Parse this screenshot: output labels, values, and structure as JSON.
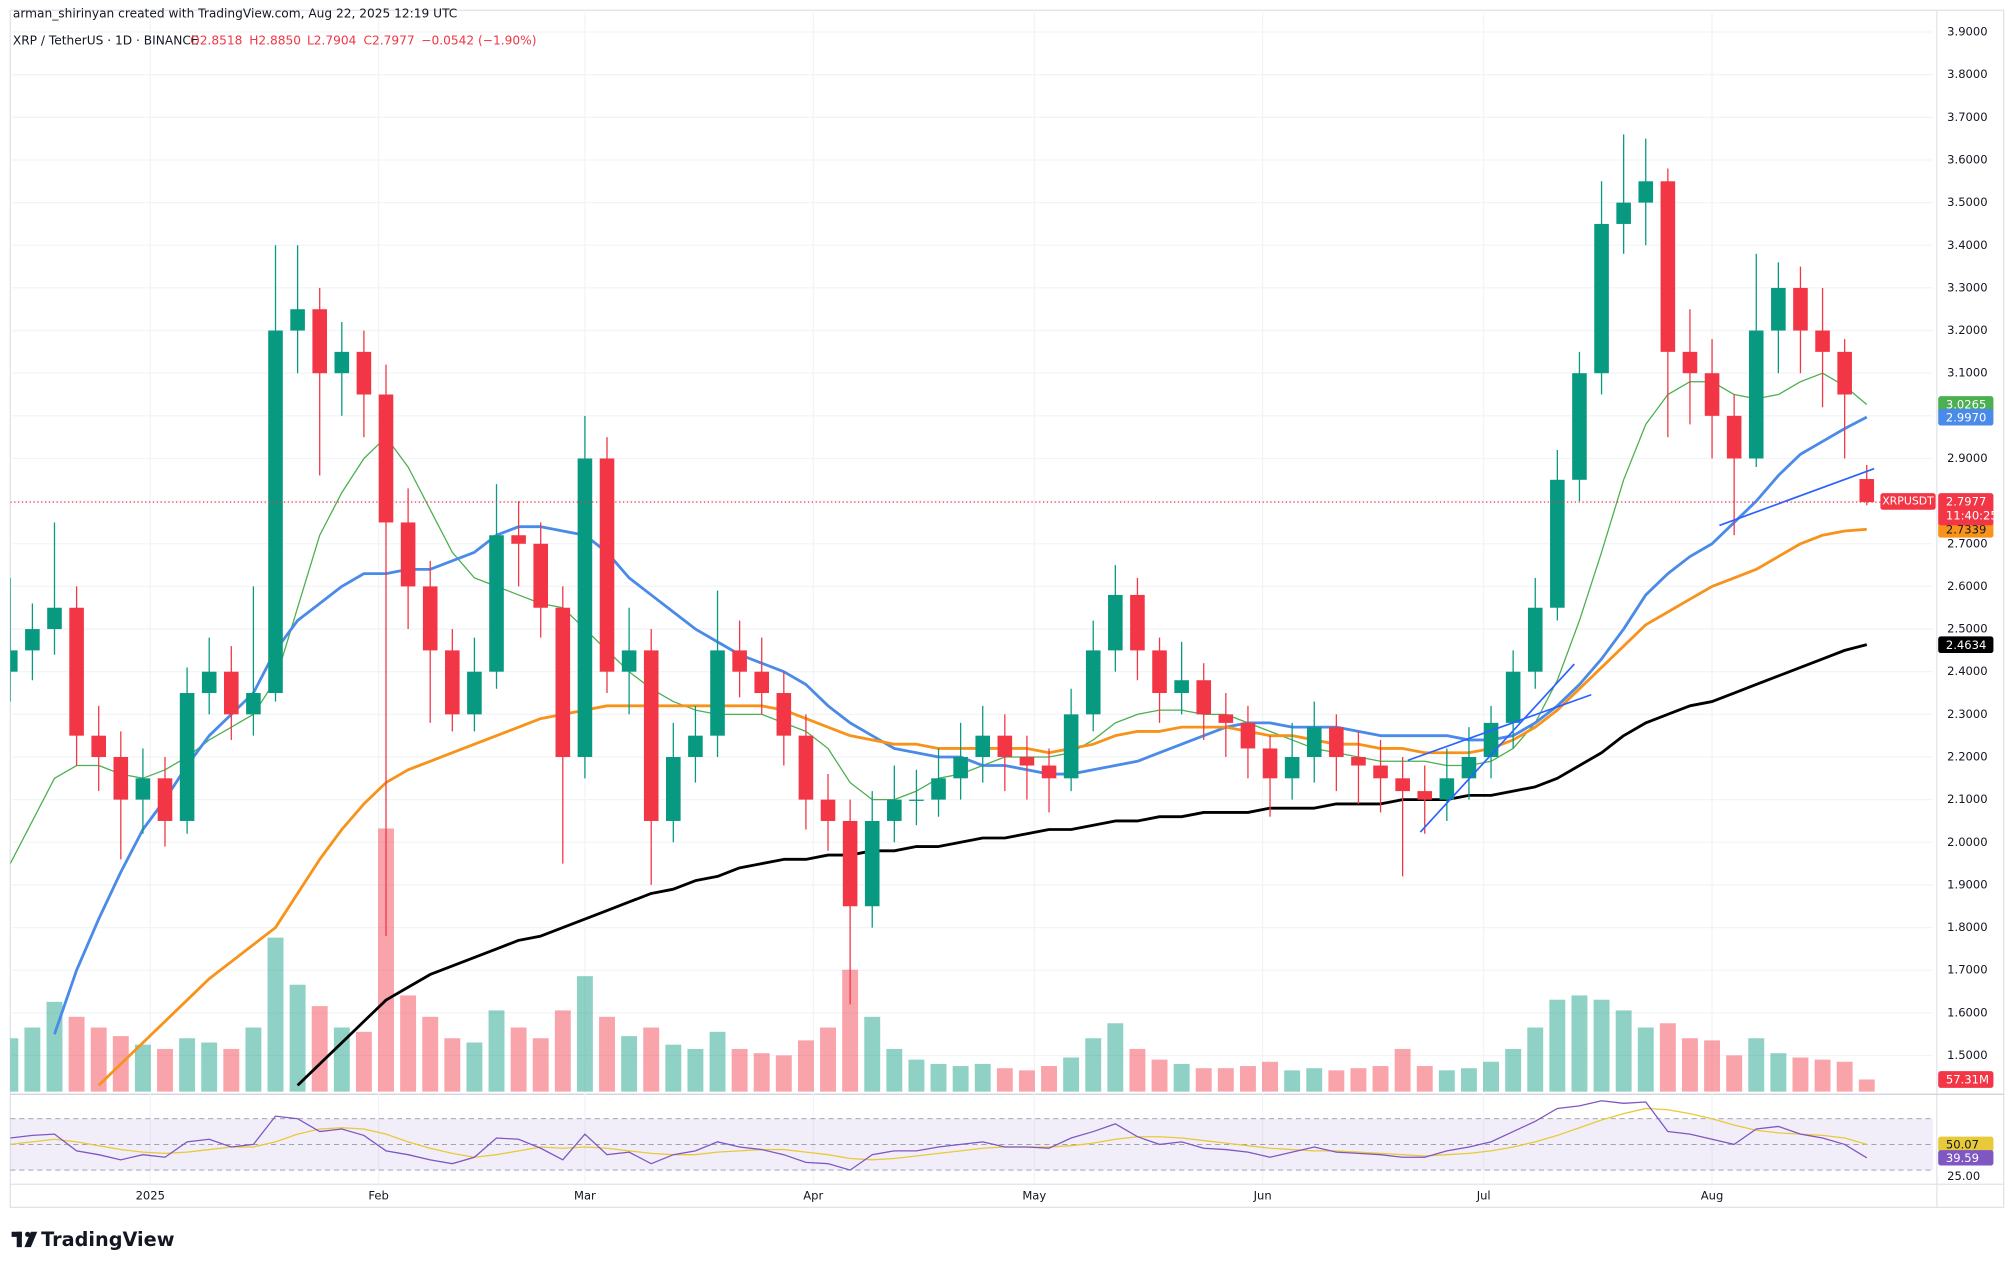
{
  "header": {
    "credit": "arman_shirinyan created with TradingView.com, Aug 22, 2025 12:19 UTC",
    "symbol": "XRP / TetherUS · 1D · BINANCE",
    "ohlc": [
      "O2.8518",
      "H2.8850",
      "L2.7904",
      "C2.7977"
    ],
    "change": "−0.0542 (−1.90%)"
  },
  "footer": {
    "logo": "TradingView"
  },
  "chart_data": {
    "type": "candlestick",
    "x": [
      0,
      3,
      6,
      9,
      12,
      15,
      18,
      21,
      24,
      27,
      30,
      33,
      36,
      39,
      42,
      45,
      48,
      51,
      54,
      57,
      60,
      63,
      66,
      69,
      72,
      75,
      78,
      81,
      84,
      87,
      90,
      93,
      96,
      99,
      102,
      105,
      108,
      111,
      114,
      117,
      120,
      123,
      126,
      129,
      132,
      135,
      138,
      141,
      144,
      147,
      150,
      153,
      156,
      159,
      162,
      165,
      168,
      171,
      174,
      177,
      180,
      183,
      186,
      189,
      192,
      195,
      198,
      201,
      204,
      207,
      210,
      213,
      216,
      219,
      222,
      225,
      228,
      231,
      234,
      237,
      240,
      243,
      246,
      249,
      252
    ],
    "xlim": [
      0,
      261
    ],
    "xticks": [
      {
        "value": 19,
        "label": "2025"
      },
      {
        "value": 50,
        "label": "Feb"
      },
      {
        "value": 78,
        "label": "Mar"
      },
      {
        "value": 109,
        "label": "Apr"
      },
      {
        "value": 139,
        "label": "May"
      },
      {
        "value": 170,
        "label": "Jun"
      },
      {
        "value": 200,
        "label": "Jul"
      },
      {
        "value": 231,
        "label": "Aug"
      }
    ],
    "open": [
      2.4,
      2.45,
      2.5,
      2.55,
      2.25,
      2.2,
      2.1,
      2.15,
      2.05,
      2.35,
      2.4,
      2.3,
      2.35,
      3.2,
      3.25,
      3.1,
      3.15,
      3.05,
      2.75,
      2.6,
      2.45,
      2.3,
      2.4,
      2.72,
      2.7,
      2.55,
      2.2,
      2.9,
      2.4,
      2.45,
      2.05,
      2.2,
      2.25,
      2.45,
      2.4,
      2.35,
      2.25,
      2.1,
      2.05,
      1.85,
      2.05,
      2.1,
      2.1,
      2.15,
      2.2,
      2.25,
      2.2,
      2.18,
      2.15,
      2.3,
      2.45,
      2.58,
      2.45,
      2.35,
      2.38,
      2.3,
      2.28,
      2.22,
      2.15,
      2.2,
      2.27,
      2.2,
      2.18,
      2.15,
      2.12,
      2.1,
      2.15,
      2.2,
      2.28,
      2.4,
      2.55,
      2.85,
      3.1,
      3.45,
      3.5,
      3.55,
      3.15,
      3.1,
      3.0,
      2.9,
      3.2,
      3.3,
      3.2,
      3.15,
      2.8518
    ],
    "high": [
      2.62,
      2.56,
      2.75,
      2.6,
      2.32,
      2.26,
      2.22,
      2.2,
      2.41,
      2.48,
      2.46,
      2.6,
      3.4,
      3.4,
      3.3,
      3.22,
      3.2,
      3.12,
      2.83,
      2.66,
      2.5,
      2.48,
      2.84,
      2.8,
      2.75,
      2.6,
      3.0,
      2.95,
      2.55,
      2.5,
      2.28,
      2.32,
      2.59,
      2.52,
      2.48,
      2.4,
      2.3,
      2.16,
      2.1,
      2.12,
      2.18,
      2.17,
      2.22,
      2.28,
      2.32,
      2.3,
      2.25,
      2.22,
      2.36,
      2.52,
      2.65,
      2.62,
      2.48,
      2.47,
      2.42,
      2.35,
      2.32,
      2.25,
      2.28,
      2.33,
      2.3,
      2.26,
      2.24,
      2.2,
      2.18,
      2.22,
      2.27,
      2.32,
      2.45,
      2.62,
      2.92,
      3.15,
      3.55,
      3.66,
      3.65,
      3.58,
      3.25,
      3.18,
      3.05,
      3.38,
      3.36,
      3.35,
      3.3,
      3.18,
      2.885
    ],
    "low": [
      2.33,
      2.38,
      2.44,
      2.18,
      2.12,
      1.96,
      2.02,
      1.99,
      2.02,
      2.3,
      2.24,
      2.25,
      2.33,
      3.1,
      2.86,
      3.0,
      2.95,
      1.78,
      2.5,
      2.28,
      2.26,
      2.26,
      2.36,
      2.6,
      2.48,
      1.95,
      2.15,
      2.35,
      2.3,
      1.9,
      2.0,
      2.14,
      2.2,
      2.34,
      2.3,
      2.18,
      2.03,
      1.98,
      1.62,
      1.8,
      2.0,
      2.04,
      2.06,
      2.1,
      2.14,
      2.12,
      2.1,
      2.07,
      2.12,
      2.26,
      2.4,
      2.38,
      2.28,
      2.3,
      2.24,
      2.2,
      2.15,
      2.06,
      2.1,
      2.14,
      2.12,
      2.09,
      2.07,
      1.92,
      2.02,
      2.05,
      2.1,
      2.15,
      2.22,
      2.36,
      2.52,
      2.8,
      3.05,
      3.38,
      3.4,
      2.95,
      2.98,
      2.9,
      2.72,
      2.88,
      3.1,
      3.1,
      3.02,
      2.9,
      2.7904
    ],
    "close": [
      2.45,
      2.5,
      2.55,
      2.25,
      2.2,
      2.1,
      2.15,
      2.05,
      2.35,
      2.4,
      2.3,
      2.35,
      3.2,
      3.25,
      3.1,
      3.15,
      3.05,
      2.75,
      2.6,
      2.45,
      2.3,
      2.4,
      2.72,
      2.7,
      2.55,
      2.2,
      2.9,
      2.4,
      2.45,
      2.05,
      2.2,
      2.25,
      2.45,
      2.4,
      2.35,
      2.25,
      2.1,
      2.05,
      1.85,
      2.05,
      2.1,
      2.1,
      2.15,
      2.2,
      2.25,
      2.2,
      2.18,
      2.15,
      2.3,
      2.45,
      2.58,
      2.45,
      2.35,
      2.38,
      2.3,
      2.28,
      2.22,
      2.15,
      2.2,
      2.27,
      2.2,
      2.18,
      2.15,
      2.12,
      2.1,
      2.15,
      2.2,
      2.28,
      2.4,
      2.55,
      2.85,
      3.1,
      3.45,
      3.5,
      3.55,
      3.15,
      3.1,
      3.0,
      2.9,
      3.2,
      3.3,
      3.2,
      3.15,
      3.05,
      2.7977
    ],
    "up_color": "#089981",
    "down_color": "#f23645",
    "ylim": [
      1.415,
      3.945
    ],
    "yticks": [
      {
        "value": 1.5,
        "label": "1.5000"
      },
      {
        "value": 1.6,
        "label": "1.6000"
      },
      {
        "value": 1.7,
        "label": "1.7000"
      },
      {
        "value": 1.8,
        "label": "1.8000"
      },
      {
        "value": 1.9,
        "label": "1.9000"
      },
      {
        "value": 2.0,
        "label": "2.0000"
      },
      {
        "value": 2.1,
        "label": "2.1000"
      },
      {
        "value": 2.2,
        "label": "2.2000"
      },
      {
        "value": 2.3,
        "label": "2.3000"
      },
      {
        "value": 2.4,
        "label": "2.4000"
      },
      {
        "value": 2.5,
        "label": "2.5000"
      },
      {
        "value": 2.6,
        "label": "2.6000"
      },
      {
        "value": 2.7,
        "label": "2.7000"
      },
      {
        "value": 2.8,
        "label": "2.8000"
      },
      {
        "value": 2.9,
        "label": "2.9000"
      },
      {
        "value": 3.0,
        "label": "3.0000"
      },
      {
        "value": 3.1,
        "label": "3.1000"
      },
      {
        "value": 3.2,
        "label": "3.2000"
      },
      {
        "value": 3.3,
        "label": "3.3000"
      },
      {
        "value": 3.4,
        "label": "3.4000"
      },
      {
        "value": 3.5,
        "label": "3.5000"
      },
      {
        "value": 3.6,
        "label": "3.6000"
      },
      {
        "value": 3.7,
        "label": "3.7000"
      },
      {
        "value": 3.8,
        "label": "3.8000"
      },
      {
        "value": 3.9,
        "label": "3.9000"
      }
    ],
    "price_tag": {
      "symbol": "XRPUSDT",
      "price": "2.7977",
      "countdown": "11:40:25"
    },
    "moving_averages": [
      {
        "color": "#4caf50",
        "values": [
          1.95,
          2.05,
          2.15,
          2.18,
          2.18,
          2.16,
          2.15,
          2.17,
          2.2,
          2.24,
          2.27,
          2.3,
          2.38,
          2.55,
          2.72,
          2.82,
          2.9,
          2.95,
          2.88,
          2.78,
          2.68,
          2.62,
          2.6,
          2.58,
          2.56,
          2.55,
          2.5,
          2.45,
          2.4,
          2.36,
          2.33,
          2.31,
          2.3,
          2.3,
          2.3,
          2.28,
          2.26,
          2.22,
          2.14,
          2.1,
          2.1,
          2.12,
          2.15,
          2.16,
          2.18,
          2.2,
          2.2,
          2.2,
          2.21,
          2.24,
          2.28,
          2.3,
          2.31,
          2.31,
          2.3,
          2.3,
          2.28,
          2.26,
          2.24,
          2.22,
          2.21,
          2.2,
          2.19,
          2.19,
          2.19,
          2.18,
          2.18,
          2.19,
          2.22,
          2.28,
          2.38,
          2.52,
          2.68,
          2.85,
          2.98,
          3.05,
          3.08,
          3.08,
          3.05,
          3.04,
          3.05,
          3.08,
          3.1,
          3.07,
          3.0265
        ],
        "last_label": "3.0265"
      },
      {
        "color": "#4a8ae8",
        "values": [
          null,
          null,
          1.55,
          1.7,
          1.82,
          1.93,
          2.03,
          2.1,
          2.18,
          2.25,
          2.3,
          2.35,
          2.45,
          2.52,
          2.56,
          2.6,
          2.63,
          2.63,
          2.64,
          2.64,
          2.66,
          2.68,
          2.72,
          2.74,
          2.74,
          2.73,
          2.72,
          2.68,
          2.62,
          2.58,
          2.54,
          2.5,
          2.47,
          2.44,
          2.42,
          2.4,
          2.37,
          2.32,
          2.28,
          2.25,
          2.22,
          2.21,
          2.2,
          2.2,
          2.18,
          2.18,
          2.17,
          2.16,
          2.16,
          2.17,
          2.18,
          2.19,
          2.21,
          2.23,
          2.25,
          2.27,
          2.28,
          2.28,
          2.27,
          2.27,
          2.27,
          2.26,
          2.25,
          2.25,
          2.25,
          2.25,
          2.24,
          2.24,
          2.25,
          2.28,
          2.32,
          2.37,
          2.43,
          2.5,
          2.58,
          2.63,
          2.67,
          2.7,
          2.75,
          2.8,
          2.86,
          2.91,
          2.94,
          2.97,
          2.997
        ],
        "last_label": "2.9970"
      },
      {
        "color": "#f7931a",
        "values": [
          null,
          null,
          null,
          null,
          1.43,
          1.48,
          1.53,
          1.58,
          1.63,
          1.68,
          1.72,
          1.76,
          1.8,
          1.88,
          1.96,
          2.03,
          2.09,
          2.14,
          2.17,
          2.19,
          2.21,
          2.23,
          2.25,
          2.27,
          2.29,
          2.3,
          2.31,
          2.32,
          2.32,
          2.32,
          2.32,
          2.32,
          2.32,
          2.32,
          2.32,
          2.31,
          2.29,
          2.27,
          2.25,
          2.24,
          2.23,
          2.23,
          2.22,
          2.22,
          2.22,
          2.22,
          2.22,
          2.21,
          2.22,
          2.23,
          2.25,
          2.26,
          2.26,
          2.27,
          2.27,
          2.27,
          2.26,
          2.25,
          2.25,
          2.24,
          2.23,
          2.23,
          2.22,
          2.22,
          2.21,
          2.21,
          2.21,
          2.22,
          2.24,
          2.27,
          2.31,
          2.36,
          2.41,
          2.46,
          2.51,
          2.54,
          2.57,
          2.6,
          2.62,
          2.64,
          2.67,
          2.7,
          2.72,
          2.73,
          2.7339
        ],
        "last_label": "2.7339"
      },
      {
        "color": "#000000",
        "values": [
          null,
          null,
          null,
          null,
          null,
          null,
          null,
          null,
          null,
          null,
          null,
          null,
          null,
          1.43,
          1.48,
          1.53,
          1.58,
          1.63,
          1.66,
          1.69,
          1.71,
          1.73,
          1.75,
          1.77,
          1.78,
          1.8,
          1.82,
          1.84,
          1.86,
          1.88,
          1.89,
          1.91,
          1.92,
          1.94,
          1.95,
          1.96,
          1.96,
          1.97,
          1.97,
          1.98,
          1.98,
          1.99,
          1.99,
          2.0,
          2.01,
          2.01,
          2.02,
          2.03,
          2.03,
          2.04,
          2.05,
          2.05,
          2.06,
          2.06,
          2.07,
          2.07,
          2.07,
          2.08,
          2.08,
          2.08,
          2.09,
          2.09,
          2.09,
          2.1,
          2.1,
          2.1,
          2.11,
          2.11,
          2.12,
          2.13,
          2.15,
          2.18,
          2.21,
          2.25,
          2.28,
          2.3,
          2.32,
          2.33,
          2.35,
          2.37,
          2.39,
          2.41,
          2.43,
          2.45,
          2.4634
        ],
        "last_label": "2.4634"
      }
    ],
    "trendlines": [
      {
        "color": "#2962ff",
        "x": [
          232,
          253
        ],
        "values": [
          2.743,
          2.876
        ]
      },
      {
        "color": "#2962ff",
        "x": [
          191.4,
          212.3
        ],
        "values": [
          2.024,
          2.418
        ]
      },
      {
        "color": "#2962ff",
        "x": [
          189.7,
          214.6
        ],
        "values": [
          2.192,
          2.346
        ]
      }
    ],
    "volume": {
      "values": [
        250,
        300,
        420,
        350,
        300,
        260,
        220,
        200,
        250,
        230,
        200,
        300,
        720,
        500,
        400,
        300,
        280,
        1230,
        450,
        350,
        250,
        230,
        380,
        300,
        250,
        380,
        540,
        350,
        260,
        300,
        220,
        200,
        280,
        200,
        180,
        170,
        240,
        300,
        570,
        350,
        200,
        150,
        130,
        120,
        130,
        110,
        100,
        120,
        160,
        250,
        320,
        200,
        150,
        130,
        110,
        110,
        120,
        140,
        100,
        110,
        100,
        110,
        120,
        200,
        120,
        100,
        110,
        140,
        200,
        300,
        430,
        450,
        430,
        380,
        300,
        320,
        250,
        240,
        170,
        250,
        180,
        160,
        150,
        140,
        57.31
      ],
      "value_label": "57.31M",
      "ylim": [
        0,
        1200
      ]
    },
    "rsi": {
      "values": [
        55,
        57,
        58,
        45,
        42,
        38,
        42,
        40,
        52,
        54,
        48,
        50,
        72,
        70,
        60,
        62,
        57,
        45,
        42,
        38,
        35,
        40,
        55,
        54,
        47,
        38,
        58,
        42,
        44,
        35,
        42,
        45,
        52,
        48,
        46,
        42,
        36,
        35,
        30,
        42,
        45,
        45,
        48,
        50,
        52,
        48,
        48,
        47,
        55,
        60,
        66,
        56,
        50,
        52,
        47,
        46,
        44,
        40,
        44,
        48,
        44,
        43,
        42,
        40,
        40,
        45,
        48,
        52,
        60,
        68,
        78,
        80,
        84,
        82,
        83,
        60,
        58,
        54,
        50,
        62,
        64,
        58,
        55,
        50,
        39.59
      ],
      "ma": [
        50,
        52,
        54,
        52,
        49,
        46,
        44,
        43,
        44,
        46,
        48,
        48,
        52,
        58,
        62,
        63,
        62,
        58,
        52,
        47,
        43,
        40,
        42,
        45,
        48,
        47,
        48,
        47,
        45,
        43,
        42,
        42,
        44,
        45,
        46,
        46,
        44,
        42,
        39,
        38,
        39,
        41,
        43,
        45,
        47,
        48,
        48,
        48,
        49,
        51,
        54,
        56,
        56,
        55,
        53,
        51,
        49,
        47,
        46,
        45,
        45,
        44,
        43,
        42,
        41,
        42,
        43,
        45,
        48,
        52,
        57,
        63,
        69,
        74,
        78,
        77,
        74,
        70,
        65,
        61,
        59,
        58,
        57,
        55,
        50.07
      ],
      "color": "#7e57c2",
      "ma_color": "#e8c93a",
      "ylim": [
        16,
        86
      ],
      "yticks": [
        {
          "value": 25,
          "label": "25.00"
        }
      ],
      "levels": [
        30,
        50,
        70
      ]
    }
  }
}
